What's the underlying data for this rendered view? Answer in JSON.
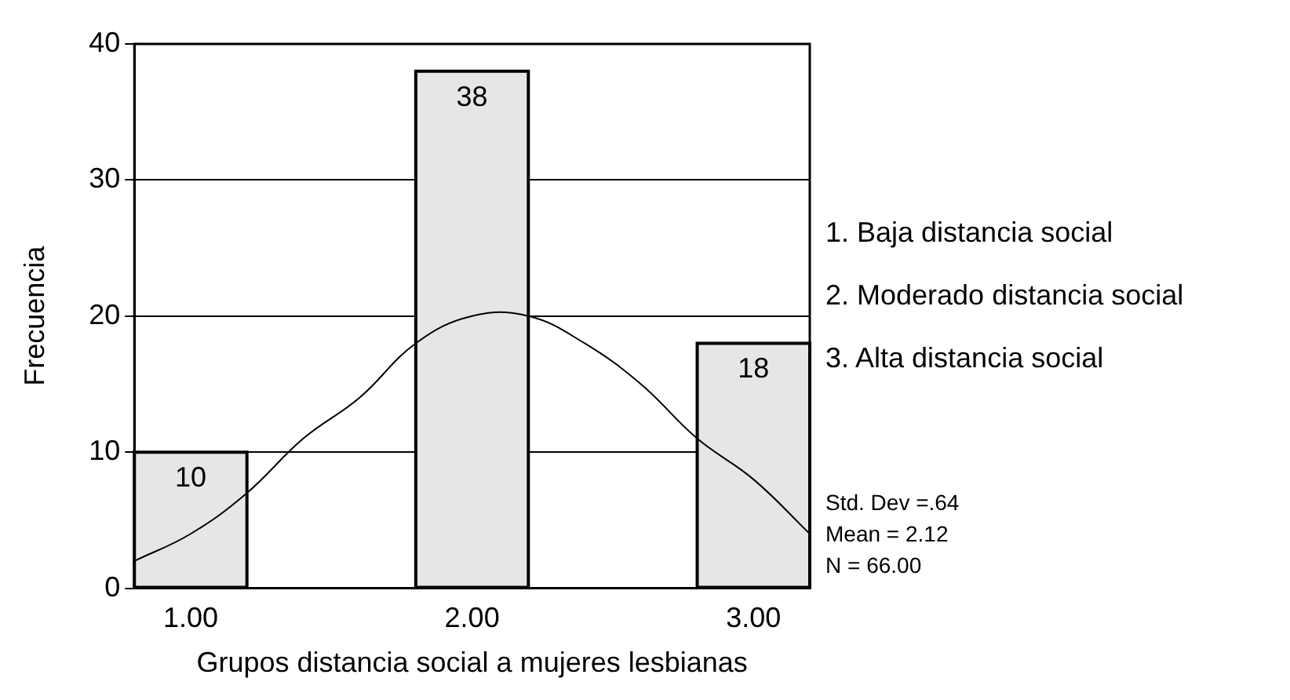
{
  "chart_data": {
    "type": "bar",
    "xlabel": "Grupos distancia social a mujeres lesbianas",
    "ylabel": "Frecuencia",
    "xlim": [
      0.8,
      3.2
    ],
    "xticks": [
      {
        "value": 1,
        "label": "1.00"
      },
      {
        "value": 2,
        "label": "2.00"
      },
      {
        "value": 3,
        "label": "3.00"
      }
    ],
    "ylim": [
      0,
      40
    ],
    "yticks": [
      0,
      10,
      20,
      30,
      40
    ],
    "grid": "y",
    "legend": false,
    "series": [
      {
        "x": [
          1,
          2,
          3
        ],
        "values": [
          10,
          38,
          18
        ],
        "color": "#e6e6e6",
        "value_labels": [
          "10",
          "38",
          "18"
        ]
      },
      {
        "type": "line",
        "x": [
          0.8,
          1.0,
          1.2,
          1.4,
          1.6,
          1.8,
          2.0,
          2.2,
          2.4,
          2.6,
          2.8,
          3.0,
          3.2
        ],
        "values": [
          2,
          4,
          7,
          11,
          14,
          18,
          20,
          20,
          18,
          15,
          11,
          8,
          4
        ],
        "color": "#000000"
      }
    ],
    "annotations": [
      "1. Baja distancia social",
      "2. Moderado distancia social",
      "3. Alta distancia social",
      "Std. Dev =.64",
      "Mean = 2.12",
      "N = 66.00"
    ]
  }
}
